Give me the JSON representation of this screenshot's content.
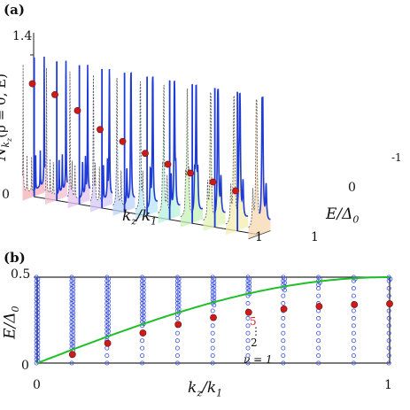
{
  "panel_a": {
    "label": "(a)",
    "ytick_top": "1.4",
    "ytick_zero": "0",
    "ylabel_main": "N",
    "ylabel_sub": "k",
    "ylabel_subsub": "z",
    "ylabel_args": "(ρ = 0, E)",
    "xlabel_main": "k",
    "xlabel_sub": "z",
    "xlabel_den": "/k",
    "xlabel_den_sub": "1",
    "xtick_end": "1",
    "elabel_main": "E/Δ",
    "elabel_sub": "0",
    "etick_zero": "0",
    "etick_minus": "-1",
    "etick_plus": "1"
  },
  "panel_b": {
    "label": "(b)",
    "ytick_top": "0.5",
    "ytick_bottom": "0",
    "ylabel_main": "E/Δ",
    "ylabel_sub": "0",
    "xlabel_main": "k",
    "xlabel_sub": "z",
    "xlabel_den": "/k",
    "xlabel_den_sub": "1",
    "xtick_left": "0",
    "xtick_right": "1",
    "annot_5": "5",
    "annot_dots": "⋮",
    "annot_2": "2",
    "annot_nu": "ν = 1"
  },
  "chart_data": [
    {
      "type": "line",
      "panel": "a",
      "x_label": "k_z/k_1",
      "y_label": "N_{k_z}(ρ = 0, E)",
      "z_label": "E/Δ_0",
      "ylim": [
        0,
        1.4
      ],
      "elim": [
        -1,
        1
      ],
      "kz_slices": [
        0.0,
        0.1,
        0.2,
        0.3,
        0.4,
        0.5,
        0.6,
        0.7,
        0.8,
        0.9,
        1.0
      ],
      "peak_marker_heights": [
        1.12,
        1.05,
        0.93,
        0.78,
        0.7,
        0.62,
        0.55,
        0.5,
        0.45,
        0.4
      ],
      "colors": {
        "solid": "#1f3bd6",
        "dashed": "#555555",
        "marker": "#cc1b1b"
      }
    },
    {
      "type": "scatter",
      "panel": "b",
      "x_label": "k_z/k_1",
      "y_label": "E/Δ_0",
      "xlim": [
        0,
        1
      ],
      "ylim": [
        0,
        0.5
      ],
      "columns_x": [
        0.0,
        0.1,
        0.2,
        0.3,
        0.4,
        0.5,
        0.6,
        0.7,
        0.8,
        0.9,
        1.0
      ],
      "first_level_red": [
        {
          "x": 0.1,
          "y": 0.05
        },
        {
          "x": 0.2,
          "y": 0.115
        },
        {
          "x": 0.3,
          "y": 0.175
        },
        {
          "x": 0.4,
          "y": 0.225
        },
        {
          "x": 0.5,
          "y": 0.265
        },
        {
          "x": 0.6,
          "y": 0.295
        },
        {
          "x": 0.7,
          "y": 0.315
        },
        {
          "x": 0.8,
          "y": 0.33
        },
        {
          "x": 0.9,
          "y": 0.34
        },
        {
          "x": 1.0,
          "y": 0.345
        }
      ],
      "gap_curve": {
        "name": "gap",
        "color": "#1fbf2a",
        "formula": "0.5*sin(pi*x/2)"
      },
      "colors": {
        "open_circle": "#3a4fe0",
        "red": "#cc1b1b"
      }
    }
  ]
}
